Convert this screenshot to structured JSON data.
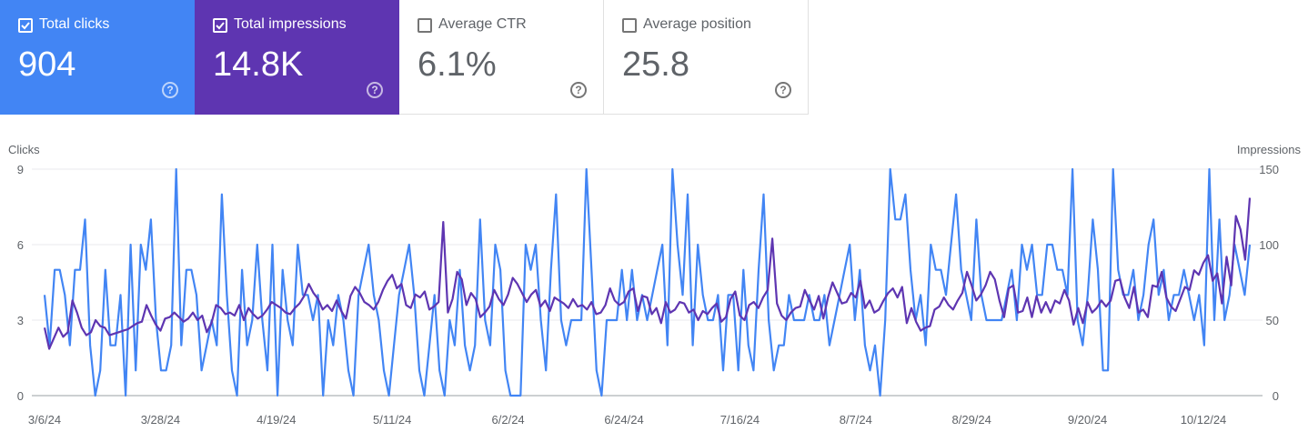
{
  "metrics": [
    {
      "label": "Total clicks",
      "value": "904",
      "checked": true,
      "help": "?"
    },
    {
      "label": "Total impressions",
      "value": "14.8K",
      "checked": true,
      "help": "?"
    },
    {
      "label": "Average CTR",
      "value": "6.1%",
      "checked": false,
      "help": "?"
    },
    {
      "label": "Average position",
      "value": "25.8",
      "checked": false,
      "help": "?"
    }
  ],
  "colors": {
    "clicks": "#4285f4",
    "impressions": "#5e35b1",
    "grid": "#e8eaed"
  },
  "chart_data": {
    "type": "line",
    "ylabel_left": "Clicks",
    "ylabel_right": "Impressions",
    "y_left_ticks": [
      "0",
      "3",
      "6",
      "9"
    ],
    "y_right_ticks": [
      "0",
      "50",
      "100",
      "150"
    ],
    "y_left_lim": [
      0,
      9
    ],
    "y_right_lim": [
      0,
      150
    ],
    "x_tick_labels": [
      "3/6/24",
      "3/28/24",
      "4/19/24",
      "5/11/24",
      "6/2/24",
      "6/24/24",
      "7/16/24",
      "8/7/24",
      "8/29/24",
      "9/20/24",
      "10/12/24"
    ],
    "x_range": [
      "3/6/24",
      "10/23/24"
    ],
    "grid": true,
    "series": [
      {
        "name": "Clicks",
        "axis": "left",
        "values": [
          4,
          2,
          5,
          5,
          4,
          2,
          5,
          5,
          7,
          2,
          0,
          1,
          5,
          2,
          2,
          4,
          0,
          6,
          1,
          6,
          5,
          7,
          3,
          1,
          1,
          2,
          9,
          2,
          5,
          5,
          4,
          1,
          2,
          3,
          2,
          8,
          4,
          1,
          0,
          5,
          2,
          3,
          6,
          3,
          1,
          6,
          0,
          5,
          3,
          2,
          6,
          4,
          4,
          3,
          4,
          0,
          3,
          2,
          4,
          3,
          1,
          0,
          4,
          5,
          6,
          4,
          3,
          1,
          0,
          2,
          4,
          5,
          6,
          4,
          1,
          0,
          2,
          4,
          1,
          0,
          3,
          2,
          5,
          2,
          1,
          2,
          7,
          3,
          2,
          6,
          5,
          1,
          0,
          0,
          0,
          6,
          5,
          6,
          3,
          1,
          5,
          8,
          3,
          2,
          3,
          3,
          3,
          9,
          5,
          1,
          0,
          3,
          3,
          3,
          5,
          3,
          5,
          3,
          4,
          3,
          4,
          5,
          6,
          2,
          9,
          6,
          4,
          8,
          2,
          6,
          4,
          3,
          3,
          4,
          1,
          4,
          4,
          1,
          5,
          2,
          1,
          5,
          8,
          3,
          1,
          2,
          2,
          4,
          3,
          3,
          3,
          4,
          3,
          3,
          4,
          2,
          3,
          4,
          5,
          6,
          3,
          5,
          2,
          1,
          2,
          0,
          3,
          9,
          7,
          7,
          8,
          5,
          3,
          4,
          2,
          6,
          5,
          5,
          4,
          6,
          8,
          5,
          4,
          3,
          7,
          4,
          3,
          3,
          3,
          3,
          4,
          5,
          3,
          6,
          5,
          6,
          4,
          4,
          6,
          6,
          5,
          5,
          4,
          9,
          3,
          2,
          4,
          7,
          5,
          1,
          1,
          9,
          5,
          4,
          4,
          5,
          3,
          4,
          6,
          7,
          4,
          5,
          3,
          4,
          4,
          5,
          4,
          3,
          4,
          2,
          9,
          3,
          7,
          3,
          4,
          6,
          5,
          4,
          6
        ]
      },
      {
        "name": "Impressions",
        "axis": "right",
        "values": [
          45,
          31,
          38,
          45,
          39,
          42,
          63,
          55,
          45,
          40,
          42,
          50,
          46,
          45,
          40,
          41,
          42,
          43,
          44,
          46,
          48,
          49,
          60,
          53,
          47,
          43,
          51,
          52,
          55,
          52,
          49,
          51,
          55,
          50,
          53,
          42,
          48,
          60,
          58,
          54,
          55,
          53,
          60,
          50,
          58,
          54,
          51,
          53,
          57,
          62,
          60,
          58,
          55,
          54,
          58,
          61,
          66,
          74,
          68,
          64,
          57,
          60,
          56,
          63,
          56,
          51,
          66,
          72,
          68,
          62,
          60,
          57,
          62,
          70,
          76,
          80,
          71,
          74,
          60,
          58,
          67,
          65,
          69,
          57,
          59,
          62,
          115,
          55,
          64,
          82,
          77,
          60,
          68,
          64,
          52,
          55,
          59,
          70,
          64,
          60,
          67,
          78,
          74,
          68,
          62,
          67,
          70,
          59,
          63,
          56,
          65,
          63,
          61,
          58,
          64,
          59,
          60,
          57,
          62,
          54,
          55,
          60,
          71,
          63,
          60,
          62,
          69,
          71,
          56,
          66,
          65,
          54,
          58,
          48,
          62,
          55,
          57,
          62,
          61,
          55,
          57,
          50,
          56,
          54,
          58,
          61,
          49,
          52,
          64,
          69,
          53,
          50,
          60,
          62,
          58,
          65,
          70,
          104,
          61,
          53,
          50,
          55,
          58,
          59,
          70,
          63,
          57,
          66,
          51,
          65,
          75,
          68,
          61,
          62,
          68,
          65,
          76,
          58,
          63,
          55,
          57,
          63,
          68,
          71,
          65,
          72,
          48,
          58,
          49,
          43,
          45,
          46,
          57,
          59,
          65,
          60,
          57,
          63,
          68,
          82,
          73,
          63,
          67,
          73,
          82,
          77,
          63,
          52,
          71,
          73,
          55,
          56,
          65,
          52,
          66,
          55,
          62,
          55,
          63,
          61,
          70,
          63,
          47,
          58,
          48,
          62,
          55,
          58,
          63,
          59,
          63,
          76,
          77,
          65,
          58,
          72,
          55,
          57,
          52,
          73,
          72,
          82,
          65,
          59,
          56,
          64,
          72,
          70,
          83,
          80,
          88,
          93,
          76,
          81,
          61,
          92,
          73,
          119,
          110,
          90,
          131
        ]
      }
    ]
  }
}
